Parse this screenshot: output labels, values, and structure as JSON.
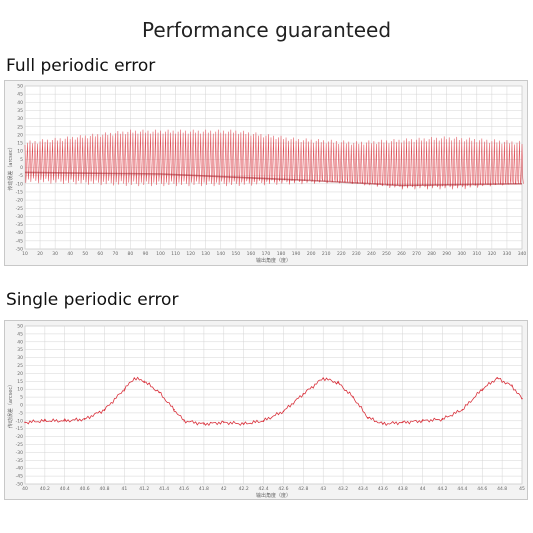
{
  "page": {
    "title": "Performance guaranteed",
    "section1_title": "Full periodic error",
    "section2_title": "Single periodic error"
  },
  "colors": {
    "series": "#d9323c",
    "grid": "#d4d4d4",
    "plot_bg": "#ffffff",
    "frame_bg": "#f3f3f3"
  },
  "chart_data": [
    {
      "type": "line",
      "title": "",
      "xlabel": "输出角度（度）",
      "ylabel": "传动误差（arcsec）",
      "xlim": [
        10,
        340
      ],
      "ylim": [
        -50,
        50
      ],
      "grid": true,
      "legend": "none",
      "x_ticks": [
        10,
        20,
        30,
        40,
        50,
        60,
        70,
        80,
        90,
        100,
        110,
        120,
        130,
        140,
        150,
        160,
        170,
        180,
        190,
        200,
        210,
        220,
        230,
        240,
        250,
        260,
        270,
        280,
        290,
        300,
        310,
        320,
        330,
        340
      ],
      "y_ticks": [
        50,
        45,
        40,
        35,
        30,
        25,
        20,
        15,
        10,
        5,
        0,
        -5,
        -10,
        -15,
        -20,
        -25,
        -30,
        -35,
        -40,
        -45,
        -50
      ],
      "oscillation": {
        "periods_per_degree": 0.6,
        "upper_envelope": [
          [
            10,
            15
          ],
          [
            80,
            22
          ],
          [
            150,
            22
          ],
          [
            190,
            17
          ],
          [
            230,
            15
          ],
          [
            290,
            18
          ],
          [
            340,
            15
          ]
        ],
        "lower_envelope": [
          [
            10,
            -8
          ],
          [
            80,
            -10
          ],
          [
            150,
            -10
          ],
          [
            220,
            -8
          ],
          [
            260,
            -12
          ],
          [
            300,
            -12
          ],
          [
            340,
            -8
          ]
        ],
        "trough_band_center": [
          [
            10,
            -3
          ],
          [
            100,
            -4
          ],
          [
            200,
            -8
          ],
          [
            260,
            -11
          ],
          [
            340,
            -10
          ]
        ]
      }
    },
    {
      "type": "line",
      "title": "",
      "xlabel": "输出角度（度）",
      "ylabel": "传动误差（arcsec）",
      "xlim": [
        40,
        45
      ],
      "ylim": [
        -50,
        50
      ],
      "grid": true,
      "legend": "none",
      "x_ticks": [
        40,
        40.2,
        40.4,
        40.6,
        40.8,
        41,
        41.2,
        41.4,
        41.6,
        41.8,
        42,
        42.2,
        42.4,
        42.6,
        42.8,
        43,
        43.2,
        43.4,
        43.6,
        43.8,
        44,
        44.2,
        44.4,
        44.6,
        44.8,
        45
      ],
      "x_tick_labels": [
        "40",
        "40.2",
        "40.4",
        "40.6",
        "40.8",
        "41",
        "41.2",
        "41.4",
        "41.6",
        "41.8",
        "42",
        "42.2",
        "42.4",
        "42.6",
        "42.8",
        "43",
        "43.2",
        "43.4",
        "43.6",
        "43.8",
        "44",
        "44.2",
        "44.4",
        "44.6",
        "44.8",
        "45"
      ],
      "y_ticks": [
        50,
        45,
        40,
        35,
        30,
        25,
        20,
        15,
        10,
        5,
        0,
        -5,
        -10,
        -15,
        -20,
        -25,
        -30,
        -35,
        -40,
        -45,
        -50
      ],
      "x": [
        40,
        40.2,
        40.4,
        40.6,
        40.8,
        41.0,
        41.1,
        41.2,
        41.35,
        41.5,
        41.6,
        41.8,
        42.0,
        42.2,
        42.4,
        42.6,
        42.8,
        43.0,
        43.15,
        43.3,
        43.45,
        43.6,
        43.8,
        44.0,
        44.2,
        44.4,
        44.6,
        44.75,
        44.9,
        45.0
      ],
      "y": [
        -11,
        -10,
        -10,
        -9,
        -3,
        10,
        17,
        15,
        8,
        -3,
        -10,
        -12,
        -11,
        -12,
        -10,
        -4,
        7,
        17,
        14,
        5,
        -8,
        -12,
        -11,
        -10,
        -9,
        -3,
        10,
        17,
        12,
        4
      ]
    }
  ]
}
